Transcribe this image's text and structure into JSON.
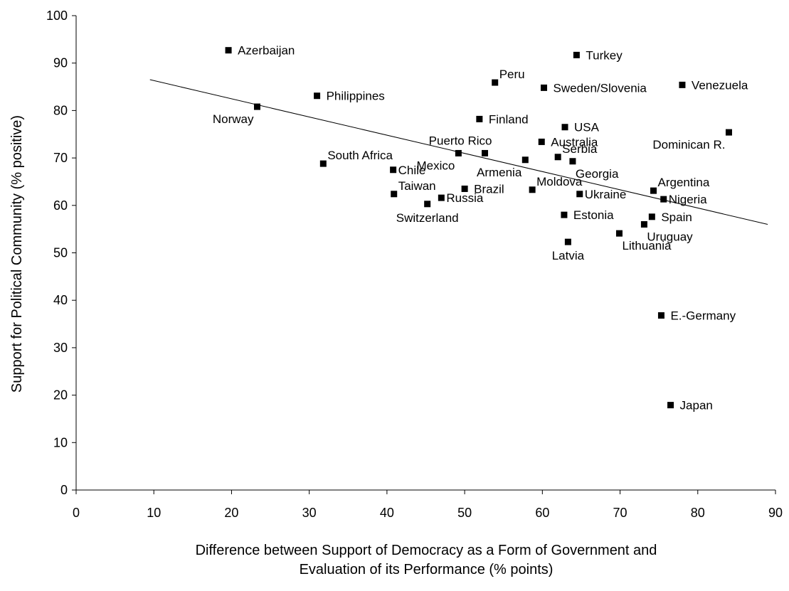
{
  "chart_data": {
    "type": "scatter",
    "title": "",
    "xlabel_lines": [
      "Difference between Support of Democracy as a Form of Government and",
      "Evaluation of its Performance (% points)"
    ],
    "ylabel": "Support for Political Community (% positive)",
    "xlim": [
      0,
      90
    ],
    "ylim": [
      0,
      100
    ],
    "x_ticks": [
      0,
      10,
      20,
      30,
      40,
      50,
      60,
      70,
      80,
      90
    ],
    "y_ticks": [
      0,
      10,
      20,
      30,
      40,
      50,
      60,
      70,
      80,
      90,
      100
    ],
    "grid": false,
    "marker_color": "#000000",
    "trendline": {
      "x": [
        9.5,
        89
      ],
      "y": [
        86.5,
        56
      ]
    },
    "points": [
      {
        "label": "Azerbaijan",
        "x": 19.6,
        "y": 92.7,
        "label_pos": "right"
      },
      {
        "label": "Norway",
        "x": 23.3,
        "y": 80.8,
        "label_pos": "below-left"
      },
      {
        "label": "Philippines",
        "x": 31.0,
        "y": 83.1,
        "label_pos": "right"
      },
      {
        "label": "South Africa",
        "x": 31.8,
        "y": 68.8,
        "label_pos": "upper-right"
      },
      {
        "label": "Chile",
        "x": 40.8,
        "y": 67.5,
        "label_pos": "right-close"
      },
      {
        "label": "Taiwan",
        "x": 40.9,
        "y": 62.4,
        "label_pos": "upper-right"
      },
      {
        "label": "Russia",
        "x": 47.0,
        "y": 61.6,
        "label_pos": "right-close"
      },
      {
        "label": "Switzerland",
        "x": 45.2,
        "y": 60.3,
        "label_pos": "below"
      },
      {
        "label": "Brazil",
        "x": 50.0,
        "y": 63.5,
        "label_pos": "right"
      },
      {
        "label": "Mexico",
        "x": 49.2,
        "y": 71.0,
        "label_pos": "below-left"
      },
      {
        "label": "Puerto Rico",
        "x": 52.6,
        "y": 71.0,
        "label_pos": "above-left"
      },
      {
        "label": "Peru",
        "x": 53.9,
        "y": 85.9,
        "label_pos": "upper-right"
      },
      {
        "label": "Finland",
        "x": 51.9,
        "y": 78.2,
        "label_pos": "right"
      },
      {
        "label": "Armenia",
        "x": 57.8,
        "y": 69.6,
        "label_pos": "below-left"
      },
      {
        "label": "Moldova",
        "x": 58.7,
        "y": 63.3,
        "label_pos": "upper-right"
      },
      {
        "label": "Australia",
        "x": 59.9,
        "y": 73.4,
        "label_pos": "right"
      },
      {
        "label": "Sweden/Slovenia",
        "x": 60.2,
        "y": 84.8,
        "label_pos": "right"
      },
      {
        "label": "Estonia",
        "x": 62.8,
        "y": 58.0,
        "label_pos": "right"
      },
      {
        "label": "USA",
        "x": 62.9,
        "y": 76.5,
        "label_pos": "right"
      },
      {
        "label": "Serbia",
        "x": 62.0,
        "y": 70.2,
        "label_pos": "upper-right"
      },
      {
        "label": "Georgia",
        "x": 63.9,
        "y": 69.3,
        "label_pos": "below-right"
      },
      {
        "label": "Latvia",
        "x": 63.3,
        "y": 52.3,
        "label_pos": "below"
      },
      {
        "label": "Turkey",
        "x": 64.4,
        "y": 91.7,
        "label_pos": "right"
      },
      {
        "label": "Ukraine",
        "x": 64.8,
        "y": 62.4,
        "label_pos": "right-close"
      },
      {
        "label": "Lithuania",
        "x": 69.9,
        "y": 54.1,
        "label_pos": "below-right"
      },
      {
        "label": "Uruguay",
        "x": 73.1,
        "y": 56.0,
        "label_pos": "below-right"
      },
      {
        "label": "Spain",
        "x": 74.1,
        "y": 57.6,
        "label_pos": "right"
      },
      {
        "label": "Argentina",
        "x": 74.3,
        "y": 63.1,
        "label_pos": "upper-right"
      },
      {
        "label": "Nigeria",
        "x": 75.6,
        "y": 61.3,
        "label_pos": "right-close"
      },
      {
        "label": "E.-Germany",
        "x": 75.3,
        "y": 36.8,
        "label_pos": "right"
      },
      {
        "label": "Japan",
        "x": 76.5,
        "y": 17.9,
        "label_pos": "right"
      },
      {
        "label": "Venezuela",
        "x": 78.0,
        "y": 85.4,
        "label_pos": "right"
      },
      {
        "label": "Dominican R.",
        "x": 84.0,
        "y": 75.4,
        "label_pos": "below-left"
      }
    ]
  }
}
